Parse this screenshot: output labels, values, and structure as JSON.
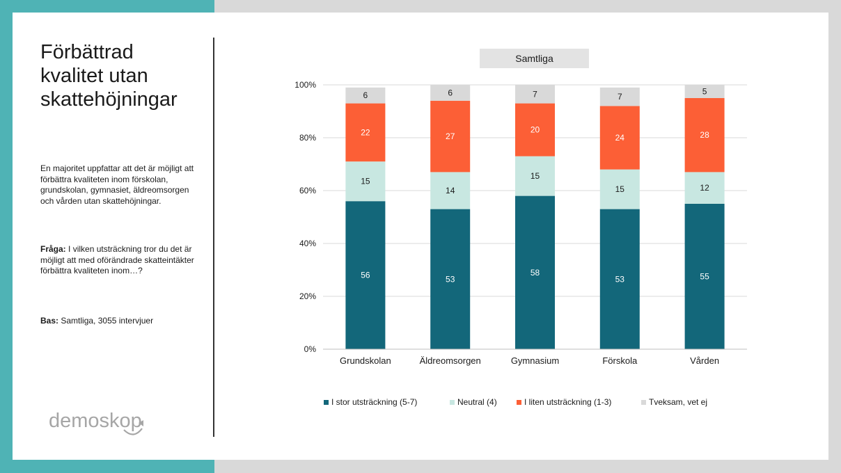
{
  "left_panel": {
    "title": "Förbättrad kvalitet utan skattehöjningar",
    "description": "En majoritet uppfattar att det är möjligt att förbättra kvaliteten inom förskolan, grundskolan, gymnasiet, äldreomsorgen och vården utan skattehöjningar.",
    "question_label": "Fråga:",
    "question_text": "I vilken utsträckning tror du det är möjligt att med oförändrade skatteintäkter förbättra kvaliteten inom…?",
    "base_label": "Bas:",
    "base_text": "Samtliga, 3055 intervjuer",
    "logo_text": "demoskop"
  },
  "chart_data": {
    "type": "bar",
    "stacked": true,
    "title": "Samtliga",
    "categories": [
      "Grundskolan",
      "Äldreomsorgen",
      "Gymnasium",
      "Förskola",
      "Vården"
    ],
    "series": [
      {
        "name": "I stor utsträckning (5-7)",
        "color": "#13677a",
        "label_color": "#ffffff",
        "values": [
          56,
          53,
          58,
          53,
          55
        ]
      },
      {
        "name": "Neutral (4)",
        "color": "#c8e7e1",
        "label_color": "#1a1a1a",
        "values": [
          15,
          14,
          15,
          15,
          12
        ]
      },
      {
        "name": "I liten utsträckning (1-3)",
        "color": "#fc5f36",
        "label_color": "#ffffff",
        "values": [
          22,
          27,
          20,
          24,
          28
        ]
      },
      {
        "name": "Tveksam, vet ej",
        "color": "#d9d9d9",
        "label_color": "#1a1a1a",
        "values": [
          6,
          6,
          7,
          7,
          5
        ]
      }
    ],
    "yticks": [
      "0%",
      "20%",
      "40%",
      "60%",
      "80%",
      "100%"
    ],
    "ylim": [
      0,
      100
    ],
    "grid": true,
    "legend_position": "bottom"
  }
}
